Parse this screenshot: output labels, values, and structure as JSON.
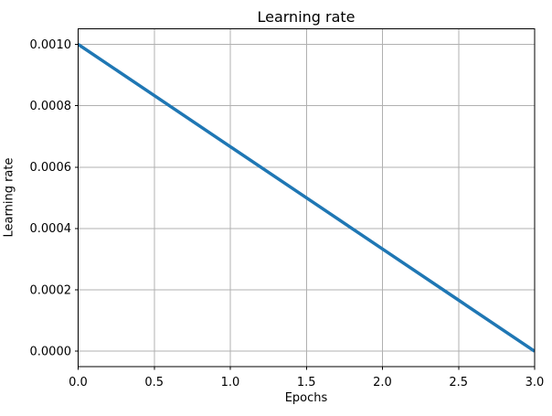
{
  "chart_data": {
    "type": "line",
    "title": "Learning rate",
    "xlabel": "Epochs",
    "ylabel": "Learning rate",
    "x": [
      0.0,
      0.5,
      1.0,
      1.5,
      2.0,
      2.5,
      3.0
    ],
    "y": [
      0.001,
      0.00083333,
      0.00066667,
      0.0005,
      0.00033333,
      0.00016667,
      0.0
    ],
    "xlim": [
      0.0,
      3.0
    ],
    "ylim": [
      -5e-05,
      0.00105
    ],
    "xticks": {
      "values": [
        0.0,
        0.5,
        1.0,
        1.5,
        2.0,
        2.5,
        3.0
      ],
      "labels": [
        "0.0",
        "0.5",
        "1.0",
        "1.5",
        "2.0",
        "2.5",
        "3.0"
      ]
    },
    "yticks": {
      "values": [
        0.0,
        0.0002,
        0.0004,
        0.0006,
        0.0008,
        0.001
      ],
      "labels": [
        "0.0000",
        "0.0002",
        "0.0004",
        "0.0006",
        "0.0008",
        "0.0010"
      ]
    },
    "grid": true,
    "legend": false,
    "line_width": 3.5,
    "colors": {
      "line": "#1f77b4",
      "grid": "#b0b0b0",
      "spine": "#000000",
      "text": "#000000",
      "background": "#ffffff"
    }
  }
}
